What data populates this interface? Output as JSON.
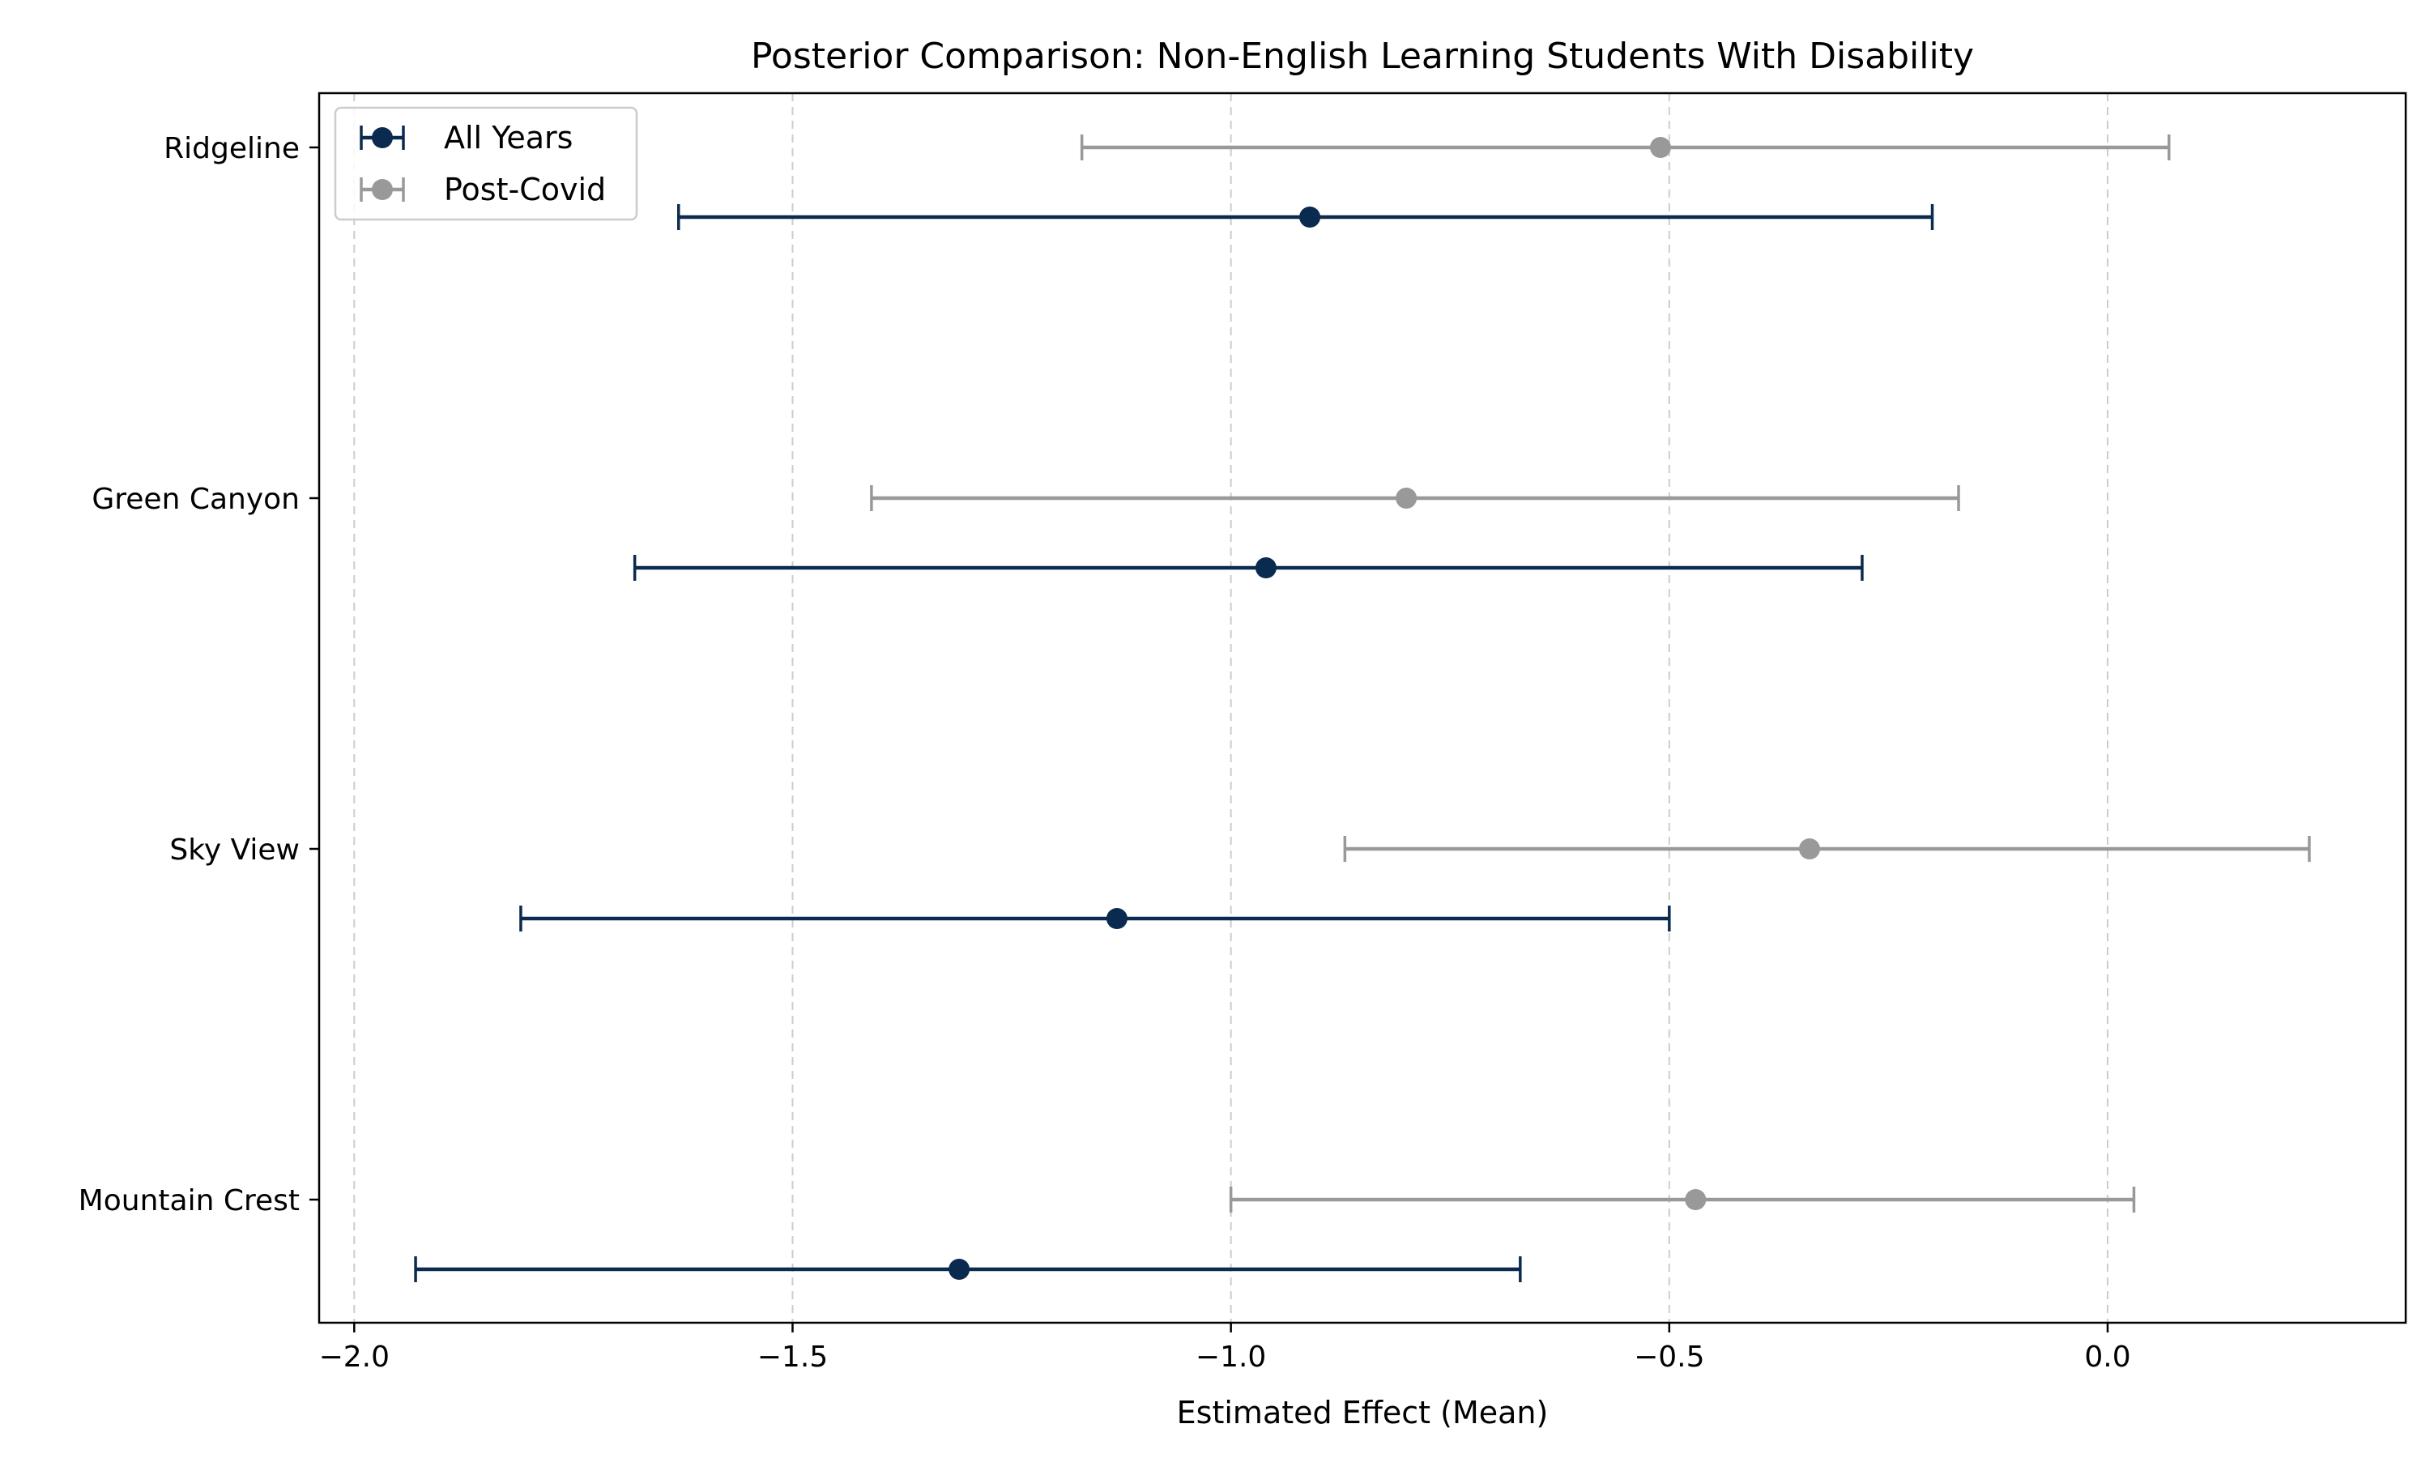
{
  "chart_data": {
    "type": "errorbar",
    "title": "Posterior Comparison: Non-English Learning Students With Disability",
    "xlabel": "Estimated Effect (Mean)",
    "ylabel": "",
    "xlim": [
      -2.04,
      0.34
    ],
    "xticks": [
      -2.0,
      -1.5,
      -1.0,
      -0.5,
      0.0
    ],
    "xtick_labels": [
      "−2.0",
      "−1.5",
      "−1.0",
      "−0.5",
      "0.0"
    ],
    "grid": "x-dashed",
    "legend_position": "top-left",
    "categories": [
      "Ridgeline",
      "Green Canyon",
      "Sky View",
      "Mountain Crest"
    ],
    "series": [
      {
        "name": "All Years",
        "color": "#0b2a4f",
        "mean": [
          -0.91,
          -0.96,
          -1.13,
          -1.31
        ],
        "lower": [
          -1.63,
          -1.68,
          -1.81,
          -1.93
        ],
        "upper": [
          -0.2,
          -0.28,
          -0.5,
          -0.67
        ]
      },
      {
        "name": "Post-Covid",
        "color": "#999999",
        "mean": [
          -0.51,
          -0.8,
          -0.34,
          -0.47
        ],
        "lower": [
          -1.17,
          -1.41,
          -0.87,
          -1.0
        ],
        "upper": [
          0.07,
          -0.17,
          0.23,
          0.03
        ]
      }
    ]
  }
}
